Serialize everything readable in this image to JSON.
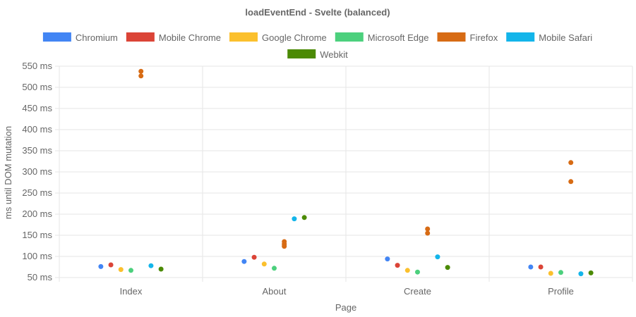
{
  "chart_data": {
    "type": "scatter",
    "title": "loadEventEnd - Svelte (balanced)",
    "xlabel": "Page",
    "ylabel": "ms until DOM mutation",
    "categories": [
      "Index",
      "About",
      "Create",
      "Profile"
    ],
    "ylim": [
      50,
      550
    ],
    "yticks": [
      50,
      100,
      150,
      200,
      250,
      300,
      350,
      400,
      450,
      500,
      550
    ],
    "ytick_suffix": " ms",
    "grid": true,
    "legend_position": "top",
    "series": [
      {
        "name": "Chromium",
        "color": "#4285f4",
        "points": [
          [
            0,
            76
          ],
          [
            1,
            88
          ],
          [
            2,
            94
          ],
          [
            3,
            75
          ]
        ]
      },
      {
        "name": "Mobile Chrome",
        "color": "#db4437",
        "points": [
          [
            0,
            80
          ],
          [
            1,
            98
          ],
          [
            2,
            79
          ],
          [
            3,
            75
          ]
        ]
      },
      {
        "name": "Google Chrome",
        "color": "#fbc02d",
        "points": [
          [
            0,
            69
          ],
          [
            1,
            82
          ],
          [
            2,
            67
          ],
          [
            3,
            60
          ]
        ]
      },
      {
        "name": "Microsoft Edge",
        "color": "#4cd07d",
        "points": [
          [
            0,
            67
          ],
          [
            1,
            72
          ],
          [
            2,
            63
          ],
          [
            3,
            62
          ]
        ]
      },
      {
        "name": "Firefox",
        "color": "#d76b14",
        "points": [
          [
            0,
            538
          ],
          [
            0,
            527
          ],
          [
            1,
            135
          ],
          [
            1,
            129
          ],
          [
            1,
            124
          ],
          [
            2,
            165
          ],
          [
            2,
            155
          ],
          [
            3,
            322
          ],
          [
            3,
            277
          ]
        ]
      },
      {
        "name": "Mobile Safari",
        "color": "#13b5ea",
        "points": [
          [
            0,
            78
          ],
          [
            1,
            189
          ],
          [
            2,
            99
          ],
          [
            3,
            59
          ]
        ]
      },
      {
        "name": "Webkit",
        "color": "#4b8a04",
        "points": [
          [
            0,
            70
          ],
          [
            1,
            192
          ],
          [
            2,
            74
          ],
          [
            3,
            61
          ]
        ]
      }
    ]
  }
}
